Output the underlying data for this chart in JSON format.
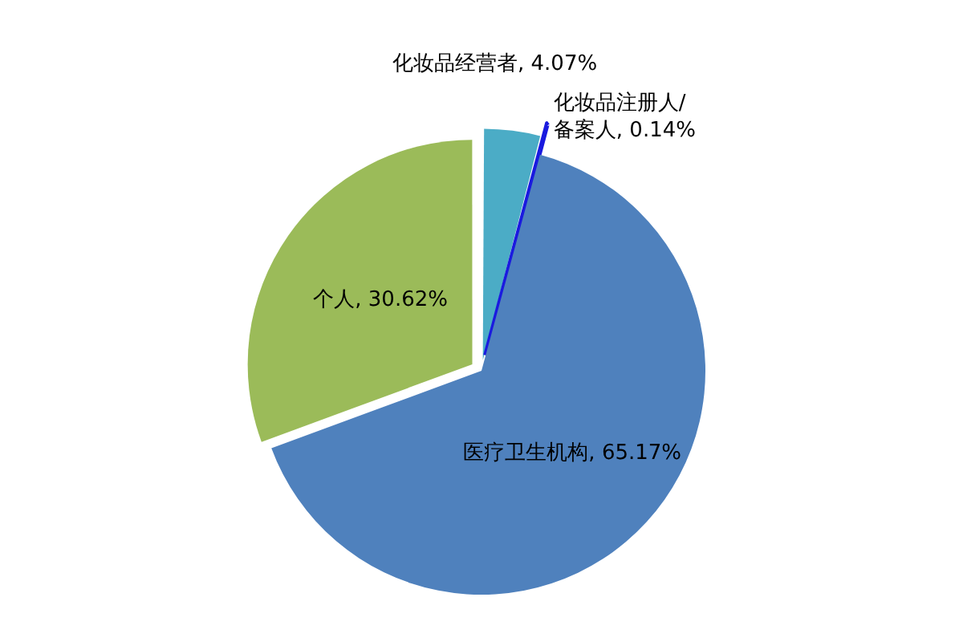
{
  "chart_data": {
    "type": "pie",
    "categories": [
      "化妆品经营者",
      "化妆品注册人/备案人",
      "医疗卫生机构",
      "个人"
    ],
    "values": [
      4.07,
      0.14,
      65.17,
      30.62
    ],
    "value_labels": [
      "4.07%",
      "0.14%",
      "65.17%",
      "30.62%"
    ],
    "colors": [
      "#4bacc6",
      "#1a1adf",
      "#4f81bd",
      "#9bbb59"
    ],
    "legend": false
  }
}
